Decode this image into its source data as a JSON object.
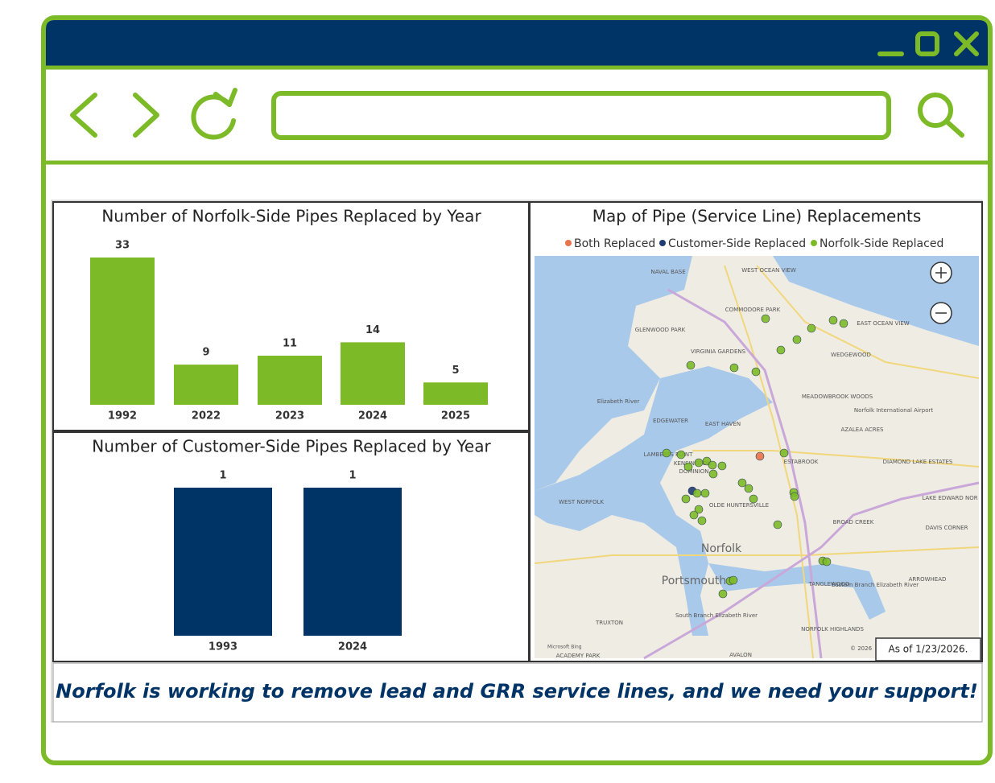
{
  "chart_data": [
    {
      "type": "bar",
      "title": "Number of Norfolk-Side Pipes Replaced by Year",
      "categories": [
        "1992",
        "2022",
        "2023",
        "2024",
        "2025"
      ],
      "values": [
        33,
        9,
        11,
        14,
        5
      ],
      "color": "#7cba28"
    },
    {
      "type": "bar",
      "title": "Number of Customer-Side Pipes Replaced by Year",
      "categories": [
        "1993",
        "2024"
      ],
      "values": [
        1,
        1
      ],
      "color": "#003366"
    }
  ],
  "map": {
    "title": "Map of Pipe (Service Line) Replacements",
    "legend": [
      {
        "name": "Both Replaced",
        "color": "#e8734a"
      },
      {
        "name": "Customer-Side Replaced",
        "color": "#1f3b73"
      },
      {
        "name": "Norfolk-Side Replaced",
        "color": "#7cba28"
      }
    ],
    "labels": [
      "NAVAL BASE",
      "WEST OCEAN VIEW",
      "COMMODORE PARK",
      "GLENWOOD PARK",
      "EAST OCEAN VIEW",
      "WEDGEWOOD",
      "VIRGINIA GARDENS",
      "Elizabeth River",
      "MEADOWBROOK WOODS",
      "Norfolk International Airport",
      "EDGEWATER",
      "EAST HAVEN",
      "AZALEA ACRES",
      "LAMBERTS POINT",
      "KENSINGTON",
      "DOMINION",
      "ESTABROOK",
      "DIAMOND LAKE ESTATES",
      "WEST NORFOLK",
      "OLDE HUNTERSVILLE",
      "LAKE EDWARD NOR",
      "BROAD CREEK",
      "DAVIS CORNER",
      "Norfolk",
      "Portsmouth",
      "Eastern Branch Elizabeth River",
      "ARROWHEAD",
      "TANGLEWOOD",
      "South Branch Elizabeth River",
      "TRUXTON",
      "NORFOLK HIGHLANDS",
      "AVALON",
      "ACADEMY PARK"
    ],
    "attribution": "Microsoft Bing",
    "copyright": "© 2026",
    "as_of": "As of 1/23/2026."
  },
  "footer": "Norfolk is working to remove lead and GRR service lines, and we need your support!"
}
